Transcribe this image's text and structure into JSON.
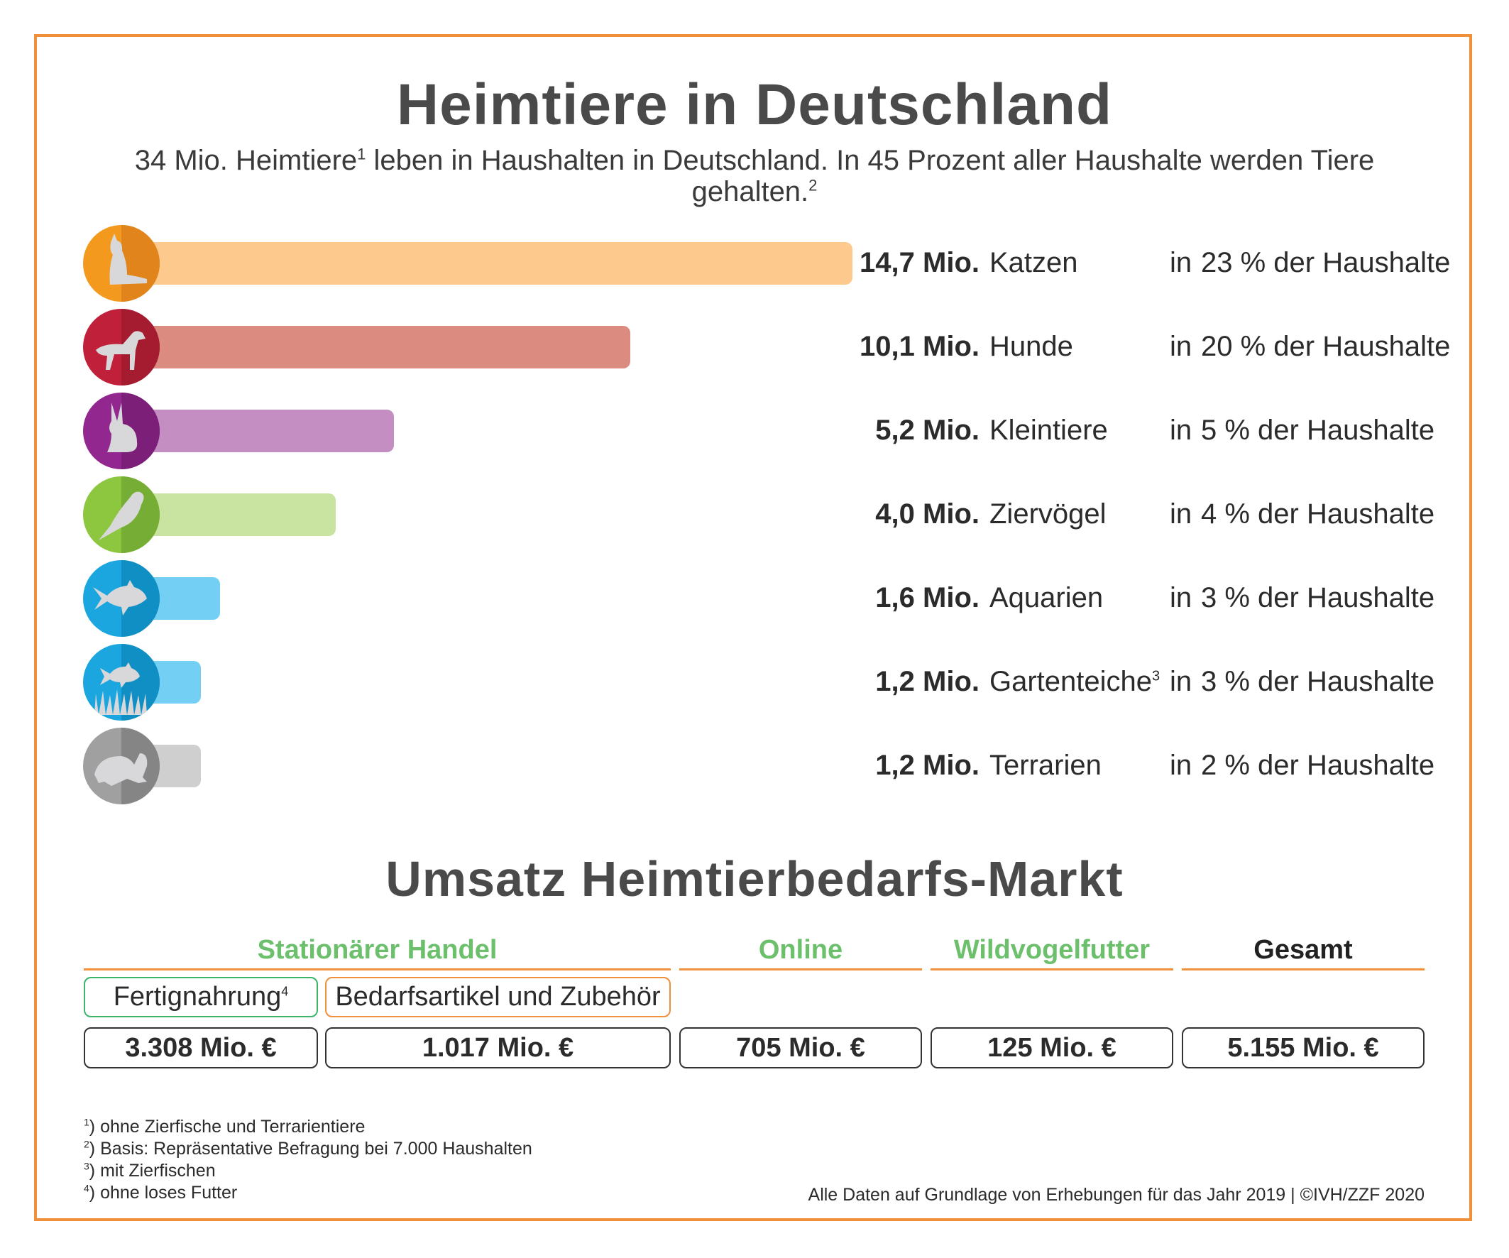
{
  "title": "Heimtiere in Deutschland",
  "subtitle": {
    "part1": "34 Mio. Heimtiere",
    "sup1": "1",
    "part2": " leben in Haushalten in Deutschland. In 45 Prozent aller Haushalte werden Tiere gehalten.",
    "sup2": "2"
  },
  "chart_data": {
    "type": "bar",
    "orientation": "horizontal",
    "unit": "Mio.",
    "categories": [
      "Katzen",
      "Hunde",
      "Kleintiere",
      "Ziervögel",
      "Aquarien",
      "Gartenteiche",
      "Terrarien"
    ],
    "values": [
      14.7,
      10.1,
      5.2,
      4.0,
      1.6,
      1.2,
      1.2
    ],
    "value_labels": [
      "14,7 Mio.",
      "10,1 Mio.",
      "5,2 Mio.",
      "4,0 Mio.",
      "1,6 Mio.",
      "1,2 Mio.",
      "1,2 Mio."
    ],
    "label_sups": [
      "",
      "",
      "",
      "",
      "",
      "3",
      ""
    ],
    "household_share_percent": [
      23,
      20,
      5,
      4,
      3,
      3,
      2
    ],
    "household_in": [
      "in",
      "in",
      "in",
      "in",
      "in",
      "in",
      "in"
    ],
    "household_labels": [
      "23 % der Haushalte",
      "20 % der Haushalte",
      "5 % der Haushalte",
      "4 % der Haushalte",
      "3 % der Haushalte",
      "3 % der Haushalte",
      "2 % der Haushalte"
    ],
    "icons": [
      "cat-icon",
      "dog-icon",
      "rabbit-icon",
      "bird-icon",
      "fish-icon",
      "pond-fish-icon",
      "turtle-icon"
    ],
    "bar_colors": [
      "#fec98c",
      "#dc8b80",
      "#c48ec2",
      "#c9e3a0",
      "#74cff5",
      "#74cff5",
      "#cfcfcf"
    ],
    "circle_colors": [
      "#f39a1e",
      "#c0203a",
      "#92278f",
      "#8dc63f",
      "#1ba6e0",
      "#1ba6e0",
      "#a0a0a0"
    ],
    "circle_dark_colors": [
      "#e0841b",
      "#a51c30",
      "#7b1f79",
      "#76ad35",
      "#0f8fc4",
      "#0f8fc4",
      "#858585"
    ],
    "grid": false
  },
  "market": {
    "title": "Umsatz Heimtierbedarfs-Markt",
    "headers": [
      "Stationärer Handel",
      "Online",
      "Wildvogelfutter",
      "Gesamt"
    ],
    "sub_fertig": "Fertignahrung",
    "sub_fertig_sup": "4",
    "sub_bedarf": "Bedarfsartikel und Zubehör",
    "values": [
      "3.308 Mio. €",
      "1.017 Mio. €",
      "705 Mio. €",
      "125 Mio. €",
      "5.155 Mio. €"
    ],
    "header_green": "#6cc06c",
    "frame_color": "#f0903a"
  },
  "footnotes": [
    {
      "sup": "1",
      "text": ") ohne Zierfische und Terrarientiere"
    },
    {
      "sup": "2",
      "text": ") Basis: Repräsentative Befragung bei 7.000 Haushalten"
    },
    {
      "sup": "3",
      "text": ") mit Zierfischen"
    },
    {
      "sup": "4",
      "text": ") ohne loses Futter"
    }
  ],
  "source": "Alle Daten auf Grundlage von Erhebungen für das Jahr 2019 | ©IVH/ZZF 2020"
}
